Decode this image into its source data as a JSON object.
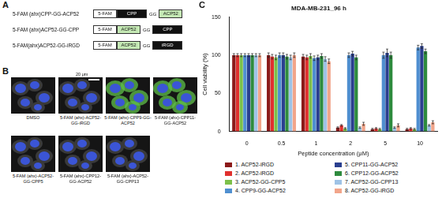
{
  "panel_labels": [
    "A",
    "B",
    "C"
  ],
  "panel_a": {
    "constructs": [
      {
        "name": "5-FAM (ahx)CPP-GG-ACP52",
        "segments": [
          {
            "text": "5-FAM",
            "color": "#ffffff"
          },
          {
            "text": "CPP",
            "color": "#111111"
          },
          {
            "text": "GG"
          },
          {
            "text": "ACP52",
            "color": "#c4e8b4"
          }
        ]
      },
      {
        "name": "5-FAM (ahx)ACP52-GG-CPP",
        "segments": [
          {
            "text": "5-FAM",
            "color": "#ffffff"
          },
          {
            "text": "ACP52",
            "color": "#c4e8b4"
          },
          {
            "text": "GG"
          },
          {
            "text": "CPP",
            "color": "#111111"
          }
        ]
      },
      {
        "name": "5-FAM(ahx)ACP52-GG-iRGD",
        "segments": [
          {
            "text": "5-FAM",
            "color": "#ffffff"
          },
          {
            "text": "ACP52",
            "color": "#c4e8b4"
          },
          {
            "text": "GG"
          },
          {
            "text": "iRGD",
            "color": "#111111"
          }
        ]
      }
    ]
  },
  "panel_b": {
    "scale_bar": "20 μm",
    "images": [
      {
        "label": "DMSO",
        "green_signal": false
      },
      {
        "label": "5-FAM (ahx)-ACP52-GG-iRGD",
        "green_signal": false
      },
      {
        "label": "5-FAM (ahx)-CPP9-GG-ACP52",
        "green_signal": true
      },
      {
        "label": "5-FAM (ahx)-CPP11-GG-ACP52",
        "green_signal": true
      },
      {
        "label": "5-FAM (ahx)-ACP52-GG-CPP5",
        "green_signal": false
      },
      {
        "label": "5-FAM (ahx)-CPP12-GG-ACP52",
        "green_signal": false
      },
      {
        "label": "5-FAM (ahx)-ACP52-GG-CPP13",
        "green_signal": false
      }
    ]
  },
  "chart_data": {
    "type": "bar",
    "title": "MDA-MB-231_96 h",
    "x_label": "Peptide concentration (μM)",
    "y_label": "Cell viability (%)",
    "categories": [
      "0",
      "0.5",
      "1",
      "2",
      "5",
      "10"
    ],
    "ylim": [
      0,
      150
    ],
    "yticks": [
      0,
      50,
      100,
      150
    ],
    "grid": false,
    "series": [
      {
        "name": "1. ACP52-iRGD",
        "color": "#8b1a1a",
        "values": [
          100,
          100,
          98,
          5,
          3,
          3
        ],
        "errors": [
          2,
          3,
          3,
          1,
          1,
          1
        ]
      },
      {
        "name": "2. ACP52-iRGD",
        "color": "#e0302e",
        "values": [
          100,
          98,
          97,
          8,
          4,
          4
        ],
        "errors": [
          2,
          3,
          3,
          1,
          1,
          1
        ]
      },
      {
        "name": "3. ACP52-GG-CPP5",
        "color": "#7cc04a",
        "values": [
          100,
          97,
          99,
          4,
          3,
          3
        ],
        "errors": [
          2,
          3,
          3,
          1,
          1,
          1
        ]
      },
      {
        "name": "4. CPP9-GG-ACP52",
        "color": "#4f8fd0",
        "values": [
          100,
          100,
          96,
          100,
          100,
          110
        ],
        "errors": [
          2,
          3,
          3,
          3,
          4,
          3
        ]
      },
      {
        "name": "5. CPP11-GG-ACP52",
        "color": "#2a3f8f",
        "values": [
          100,
          100,
          97,
          102,
          103,
          112
        ],
        "errors": [
          2,
          3,
          3,
          3,
          5,
          3
        ]
      },
      {
        "name": "6. CPP12-GG-ACP52",
        "color": "#2e8b3e",
        "values": [
          100,
          98,
          99,
          97,
          100,
          105
        ],
        "errors": [
          2,
          3,
          3,
          3,
          4,
          3
        ]
      },
      {
        "name": "7. ACP52-GG-CPP13",
        "color": "#9fc3e6",
        "values": [
          100,
          97,
          95,
          5,
          5,
          8
        ],
        "errors": [
          2,
          3,
          3,
          1,
          1,
          1
        ]
      },
      {
        "name": "8. ACP52-GG-iRGD",
        "color": "#f2a58a",
        "values": [
          100,
          100,
          92,
          10,
          8,
          12
        ],
        "errors": [
          2,
          3,
          3,
          2,
          2,
          2
        ]
      }
    ]
  }
}
